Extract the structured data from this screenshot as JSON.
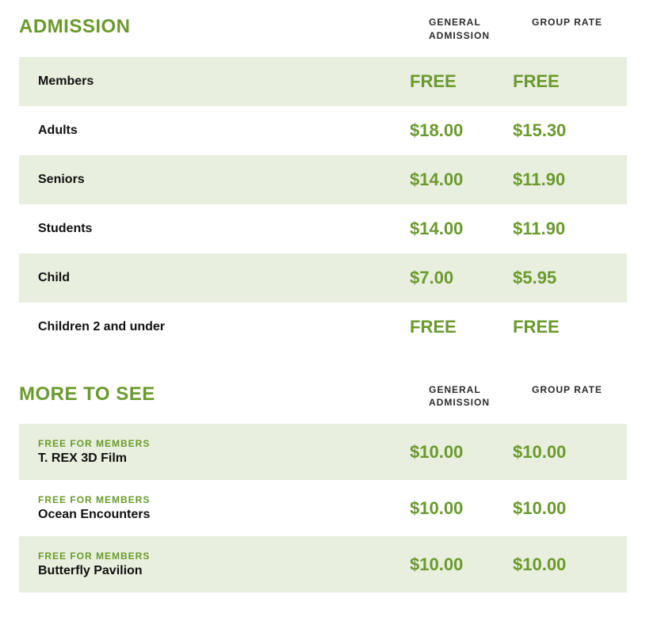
{
  "colors": {
    "accent": "#6a9a2d",
    "alt_row_bg": "#e9efde",
    "text": "#111111",
    "header_text": "#2b2b2b",
    "page_bg": "#ffffff"
  },
  "typography": {
    "title_fontsize": 24,
    "price_fontsize": 22,
    "label_fontsize": 16,
    "colhead_fontsize": 12,
    "tag_fontsize": 12,
    "font_family": "Segoe UI / Helvetica Neue / Arial"
  },
  "layout": {
    "grid_columns": "1fr 120px 120px",
    "row_padding": "18px 24px"
  },
  "sections": {
    "admission": {
      "title": "ADMISSION",
      "columns": {
        "col1": "GENERAL ADMISSION",
        "col2": "GROUP RATE"
      },
      "rows": [
        {
          "label": "Members",
          "general": "FREE",
          "group": "FREE",
          "alt": true
        },
        {
          "label": "Adults",
          "general": "$18.00",
          "group": "$15.30",
          "alt": false
        },
        {
          "label": "Seniors",
          "general": "$14.00",
          "group": "$11.90",
          "alt": true
        },
        {
          "label": "Students",
          "general": "$14.00",
          "group": "$11.90",
          "alt": false
        },
        {
          "label": "Child",
          "general": "$7.00",
          "group": "$5.95",
          "alt": true
        },
        {
          "label": "Children 2 and under",
          "general": "FREE",
          "group": "FREE",
          "alt": false
        }
      ]
    },
    "more": {
      "title": "MORE TO SEE",
      "columns": {
        "col1": "GENERAL ADMISSION",
        "col2": "GROUP RATE"
      },
      "tag": "FREE FOR MEMBERS",
      "rows": [
        {
          "label": "T. REX 3D Film",
          "general": "$10.00",
          "group": "$10.00",
          "alt": true
        },
        {
          "label": "Ocean Encounters",
          "general": "$10.00",
          "group": "$10.00",
          "alt": false
        },
        {
          "label": "Butterfly Pavilion",
          "general": "$10.00",
          "group": "$10.00",
          "alt": true
        }
      ]
    }
  }
}
